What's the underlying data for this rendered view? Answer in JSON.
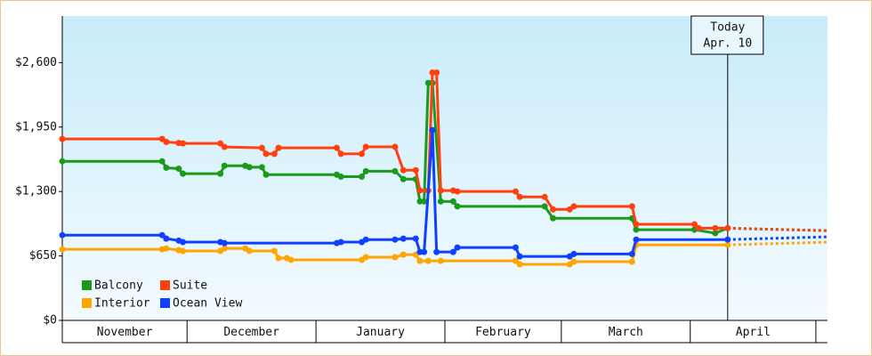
{
  "chart_data": {
    "type": "line",
    "ylim": [
      0,
      3070
    ],
    "yticks": [
      {
        "value": 0,
        "label": "$0"
      },
      {
        "value": 650,
        "label": "$650"
      },
      {
        "value": 1300,
        "label": "$1,300"
      },
      {
        "value": 1950,
        "label": "$1,950"
      },
      {
        "value": 2600,
        "label": "$2,600"
      }
    ],
    "xlim": [
      0,
      184
    ],
    "xticks": [
      {
        "value": 0,
        "label": "November"
      },
      {
        "value": 30,
        "label": "December"
      },
      {
        "value": 61,
        "label": "January"
      },
      {
        "value": 92,
        "label": "February"
      },
      {
        "value": 120,
        "label": "March"
      },
      {
        "value": 151,
        "label": "April"
      }
    ],
    "annotation": {
      "x": 160,
      "lines": [
        "Today",
        "Apr. 10"
      ]
    },
    "legend": "lower left",
    "series": [
      {
        "name": "Balcony",
        "color": "#1a9a1a",
        "x": [
          0,
          24,
          25,
          28,
          29,
          38,
          39,
          44,
          45,
          48,
          49,
          66,
          67,
          72,
          73,
          80,
          82,
          85,
          86,
          87,
          88,
          89,
          91,
          94,
          95,
          116,
          118,
          137,
          138,
          152,
          157,
          160
        ],
        "values": [
          1605,
          1605,
          1540,
          1530,
          1480,
          1480,
          1560,
          1560,
          1545,
          1545,
          1470,
          1470,
          1450,
          1450,
          1505,
          1505,
          1425,
          1425,
          1200,
          1200,
          2395,
          2395,
          1200,
          1200,
          1150,
          1150,
          1030,
          1030,
          915,
          915,
          880,
          930
        ],
        "forecast": {
          "x": [
            160,
            184
          ],
          "values": [
            930,
            905
          ]
        }
      },
      {
        "name": "Suite",
        "color": "#ff4010",
        "x": [
          0,
          24,
          25,
          28,
          29,
          38,
          39,
          48,
          49,
          51,
          52,
          66,
          67,
          72,
          73,
          80,
          82,
          85,
          86,
          88,
          89,
          90,
          91,
          94,
          95,
          109,
          110,
          116,
          118,
          122,
          123,
          137,
          138,
          152,
          153,
          157,
          160
        ],
        "values": [
          1830,
          1830,
          1800,
          1790,
          1785,
          1785,
          1750,
          1740,
          1680,
          1680,
          1740,
          1740,
          1680,
          1680,
          1750,
          1750,
          1515,
          1515,
          1310,
          1310,
          2500,
          2500,
          1310,
          1310,
          1300,
          1300,
          1245,
          1245,
          1120,
          1120,
          1150,
          1150,
          970,
          970,
          930,
          930,
          930
        ],
        "forecast": {
          "x": [
            160,
            184
          ],
          "values": [
            930,
            905
          ]
        }
      },
      {
        "name": "Interior",
        "color": "#ffa500",
        "x": [
          0,
          24,
          25,
          28,
          29,
          38,
          39,
          44,
          45,
          51,
          52,
          54,
          55,
          72,
          73,
          80,
          82,
          85,
          86,
          88,
          91,
          109,
          110,
          122,
          123,
          137,
          138,
          160
        ],
        "values": [
          717,
          717,
          726,
          708,
          700,
          700,
          726,
          726,
          700,
          700,
          628,
          628,
          610,
          610,
          637,
          637,
          663,
          663,
          600,
          600,
          600,
          600,
          565,
          565,
          592,
          592,
          762,
          762
        ],
        "forecast": {
          "x": [
            160,
            184
          ],
          "values": [
            762,
            789
          ]
        }
      },
      {
        "name": "Ocean View",
        "color": "#1040ff",
        "x": [
          0,
          24,
          25,
          28,
          29,
          38,
          39,
          66,
          67,
          72,
          73,
          80,
          82,
          85,
          86,
          87,
          89,
          90,
          94,
          95,
          109,
          110,
          122,
          123,
          137,
          138,
          160
        ],
        "values": [
          860,
          860,
          825,
          805,
          790,
          790,
          780,
          780,
          790,
          790,
          815,
          815,
          825,
          825,
          690,
          690,
          1920,
          690,
          690,
          735,
          735,
          645,
          645,
          670,
          670,
          815,
          815
        ],
        "forecast": {
          "x": [
            160,
            184
          ],
          "values": [
            815,
            843
          ]
        }
      }
    ]
  }
}
